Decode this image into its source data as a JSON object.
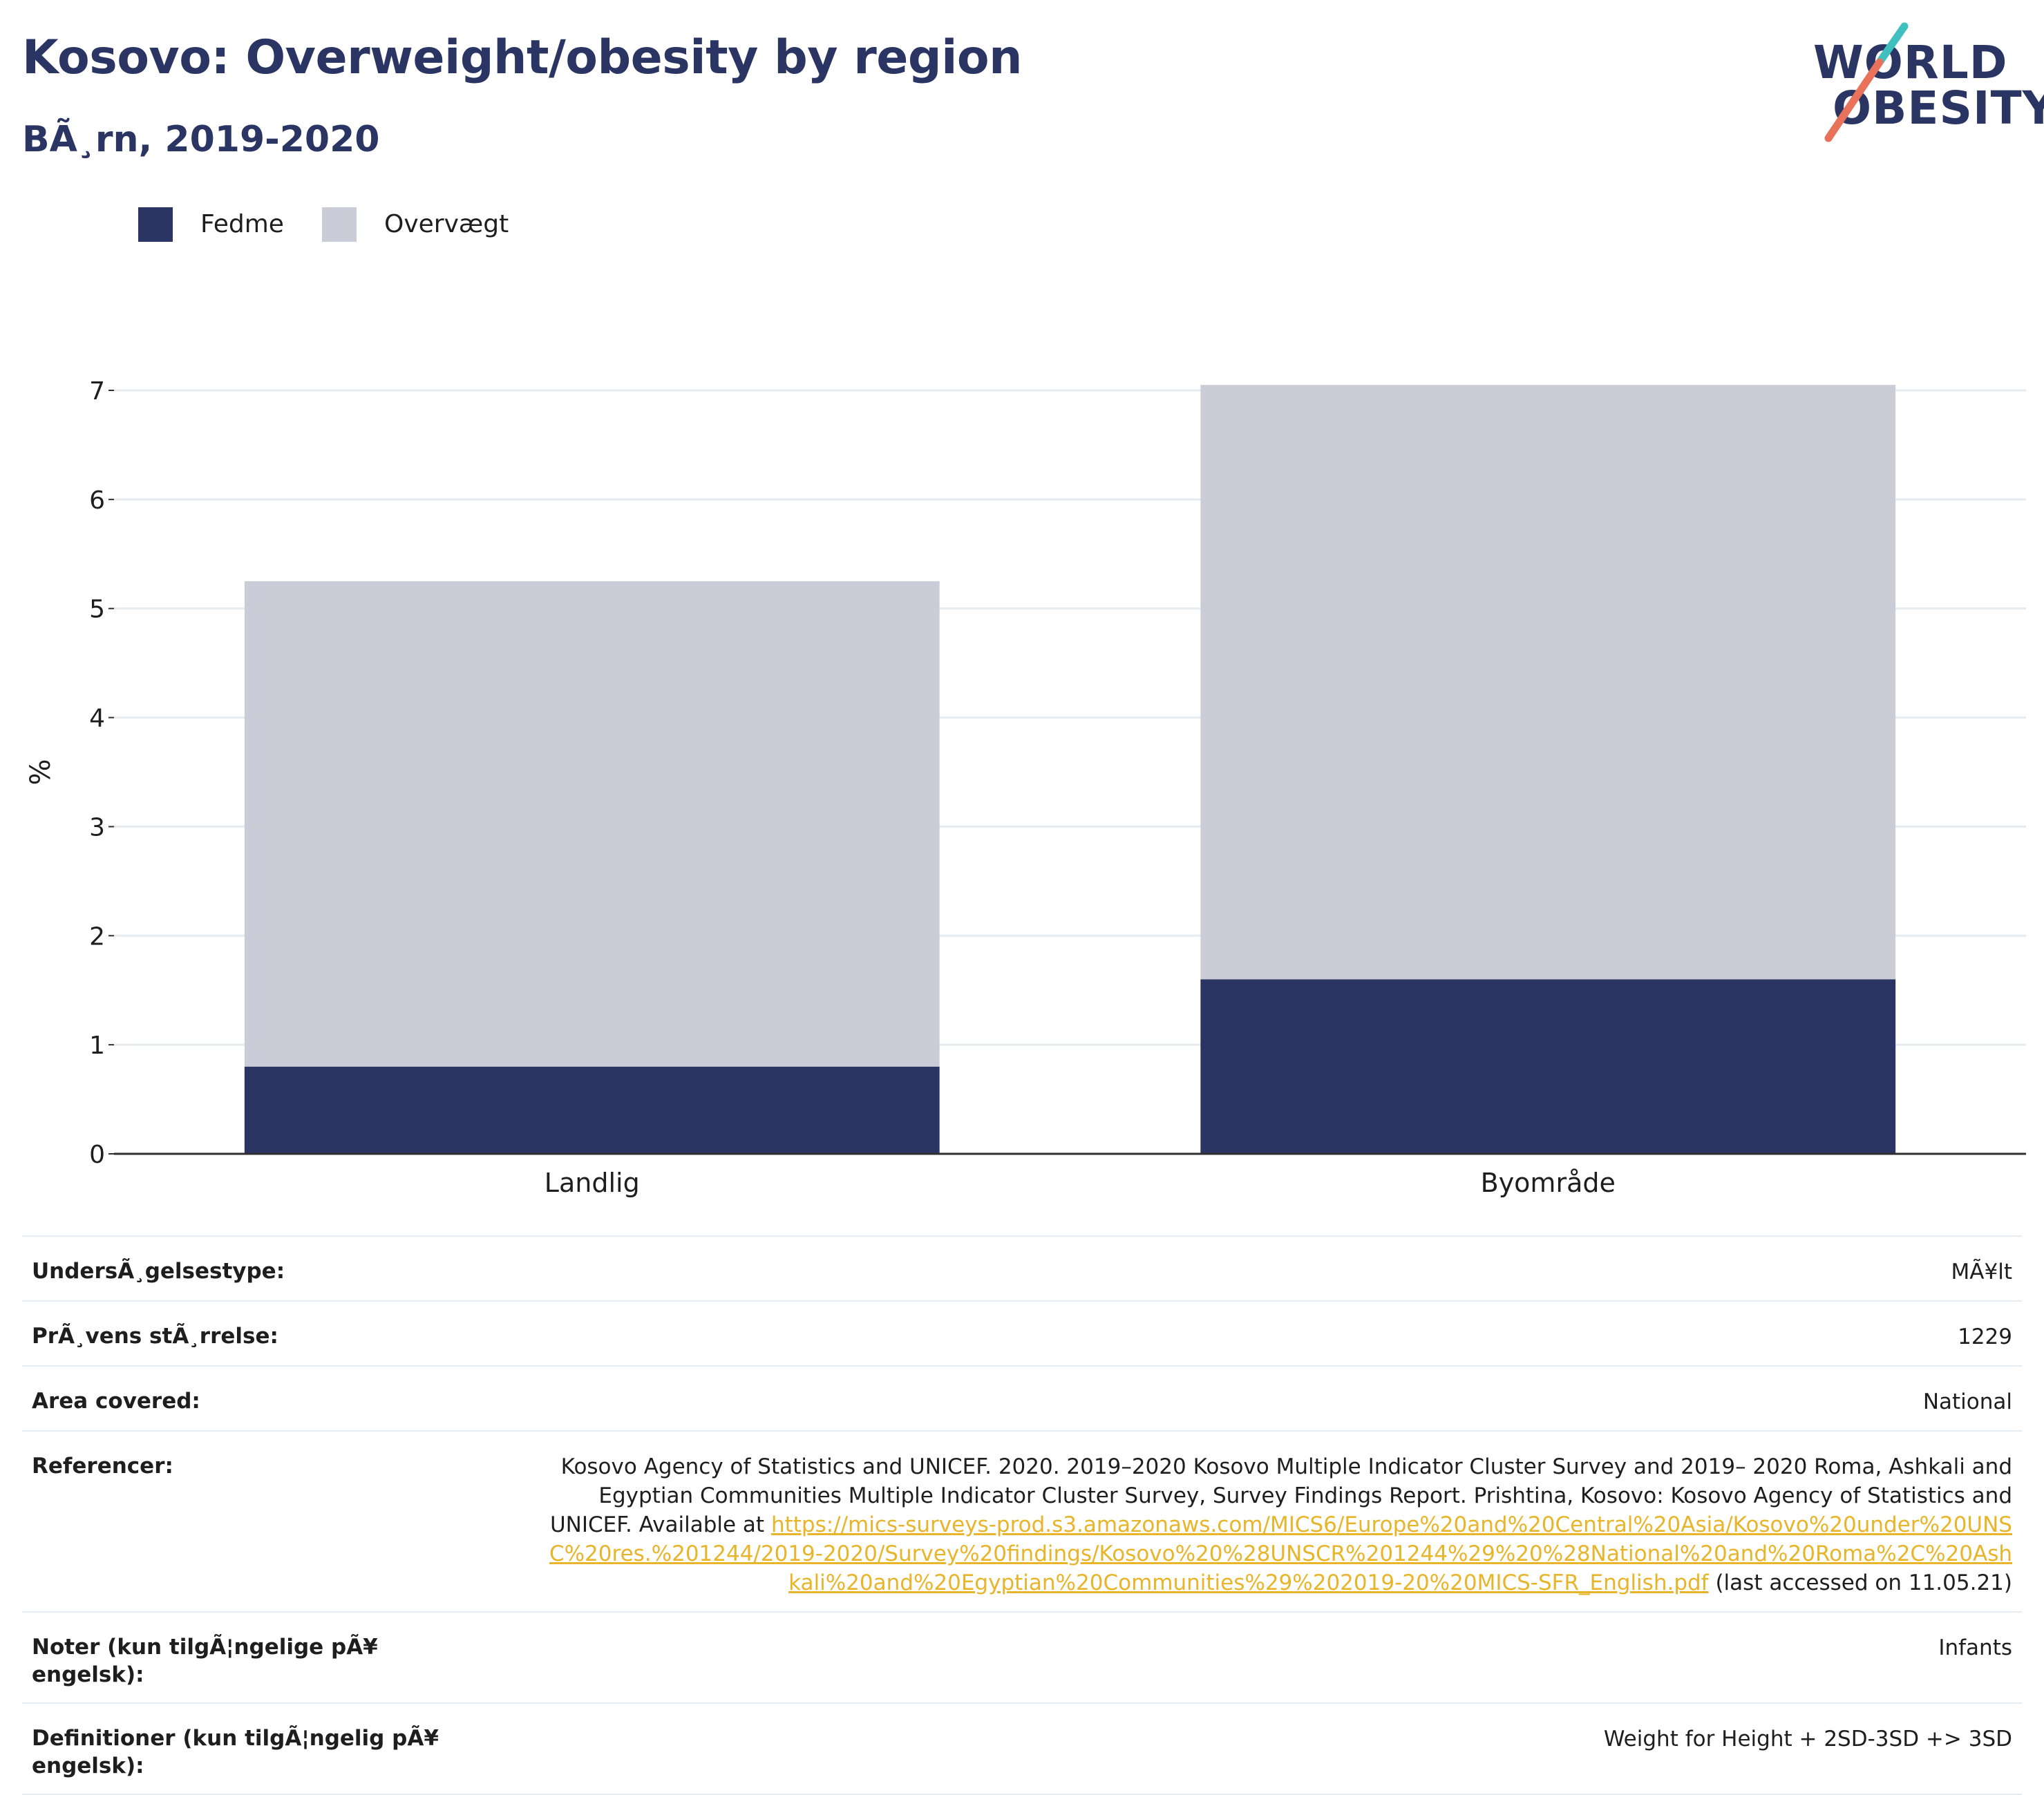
{
  "header": {
    "title": "Kosovo: Overweight/obesity by region",
    "subtitle": "BÃ¸rn, 2019-2020"
  },
  "logo": {
    "line1": "WORLD",
    "line2": "OBESITY",
    "colors": {
      "navy": "#2b3563",
      "teal": "#3fbfbf",
      "coral": "#e8735a"
    }
  },
  "colors": {
    "obesity": "#2b3563",
    "overweight": "#cacdd8",
    "grid": "#e6ebf0",
    "axis": "#2f2f2f",
    "link": "#e8b52a"
  },
  "chart_data": {
    "type": "bar",
    "stacked": true,
    "categories": [
      "Landlig",
      "Byområde"
    ],
    "series": [
      {
        "name": "Fedme",
        "values": [
          0.8,
          1.6
        ],
        "color": "#2b3563"
      },
      {
        "name": "Overvægt",
        "values": [
          4.45,
          5.45
        ],
        "color": "#cacdd8"
      }
    ],
    "ylabel": "%",
    "xlabel": "",
    "ylim": [
      0,
      7
    ],
    "yticks": [
      0,
      1,
      2,
      3,
      4,
      5,
      6,
      7
    ],
    "grid": true,
    "legend_position": "top-left"
  },
  "meta": {
    "survey_type_label": "UndersÃ¸gelsestype:",
    "survey_type_value": "MÃ¥lt",
    "sample_size_label": "PrÃ¸vens stÃ¸rrelse:",
    "sample_size_value": "1229",
    "area_label": "Area covered:",
    "area_value": "National",
    "references_label": "Referencer:",
    "references_text": "Kosovo Agency of Statistics and UNICEF. 2020. 2019–2020 Kosovo Multiple Indicator Cluster Survey and 2019– 2020 Roma, Ashkali and Egyptian Communities Multiple Indicator Cluster Survey, Survey Findings Report. Prishtina, Kosovo: Kosovo Agency of Statistics and UNICEF. Available at ",
    "references_link": "https://mics-surveys-prod.s3.amazonaws.com/MICS6/Europe%20and%20Central%20Asia/Kosovo%20under%20UNSC%20res.%201244/2019-2020/Survey%20findings/Kosovo%20%28UNSCR%201244%29%20%28National%20and%20Roma%2C%20Ashkali%20and%20Egyptian%20Communities%29%202019-20%20MICS-SFR_English.pdf",
    "references_suffix": " (last accessed on 11.05.21)",
    "notes_label": "Noter (kun tilgÃ¦ngelige pÃ¥ engelsk):",
    "notes_value": "Infants",
    "definitions_label": "Definitioner (kun tilgÃ¦ngelig pÃ¥ engelsk):",
    "definitions_value": "Weight for Height + 2SD-3SD +> 3SD"
  }
}
